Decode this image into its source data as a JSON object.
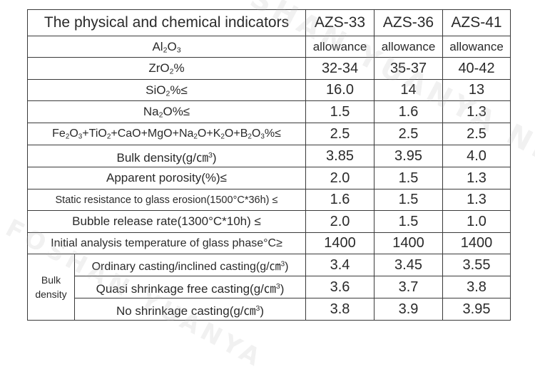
{
  "table": {
    "header": {
      "title": "The physical and chemical indicators",
      "grades": [
        "AZS-33",
        "AZS-36",
        "AZS-41"
      ]
    },
    "rows": [
      {
        "label": "Al2O3",
        "values": [
          "allowance",
          "allowance",
          "allowance"
        ]
      },
      {
        "label": "ZrO2%",
        "values": [
          "32-34",
          "35-37",
          "40-42"
        ]
      },
      {
        "label": "SiO2%≤",
        "values": [
          "16.0",
          "14",
          "13"
        ]
      },
      {
        "label": "Na2O%≤",
        "values": [
          "1.5",
          "1.6",
          "1.3"
        ]
      },
      {
        "label": "Fe2O3+TiO2+CaO+MgO+Na2O+K2O+B2O3%≤",
        "values": [
          "2.5",
          "2.5",
          "2.5"
        ]
      },
      {
        "label": "Bulk density(g/cm3)",
        "values": [
          "3.85",
          "3.95",
          "4.0"
        ]
      },
      {
        "label": "Apparent porosity(%)≤",
        "values": [
          "2.0",
          "1.5",
          "1.3"
        ]
      },
      {
        "label": "Static resistance to glass erosion(1500°C*36h) ≤",
        "values": [
          "1.6",
          "1.5",
          "1.3"
        ]
      },
      {
        "label": "Bubble release rate(1300°C*10h) ≤",
        "values": [
          "2.0",
          "1.5",
          "1.0"
        ]
      },
      {
        "label": "Initial analysis temperature of glass phase°C≥",
        "values": [
          "1400",
          "1400",
          "1400"
        ]
      }
    ],
    "bulk_group": {
      "label": "Bulk density",
      "rows": [
        {
          "label": "Ordinary casting/inclined casting(g/cm3)",
          "values": [
            "3.4",
            "3.45",
            "3.55"
          ]
        },
        {
          "label": "Quasi shrinkage free casting(g/cm3)",
          "values": [
            "3.6",
            "3.7",
            "3.8"
          ]
        },
        {
          "label": "No shrinkage casting(g/cm3)",
          "values": [
            "3.8",
            "3.9",
            "3.95"
          ]
        }
      ]
    }
  },
  "watermark": {
    "lines": [
      "FOSHAN YUANYA NEW MATERIALS"
    ]
  }
}
